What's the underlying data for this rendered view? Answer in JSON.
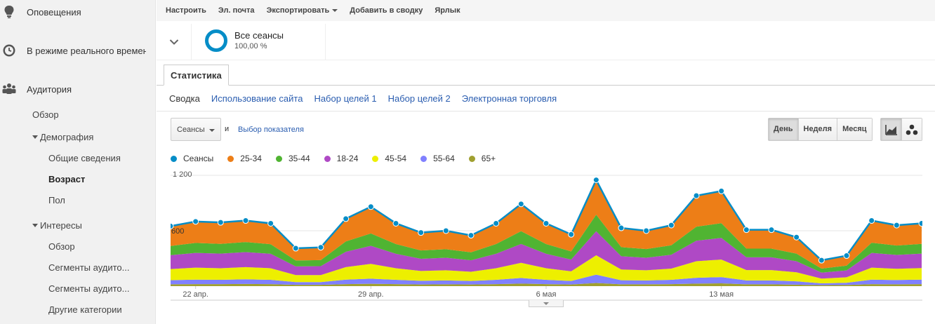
{
  "sidebar": {
    "notifications": {
      "label": "Оповещения",
      "icon": "bulb-icon"
    },
    "realtime": {
      "label": "В режиме реального времени",
      "icon": "clock-icon"
    },
    "audience": {
      "label": "Аудитория",
      "icon": "people-icon"
    },
    "audience_items": {
      "overview": "Обзор",
      "demographics": "Демография",
      "general": "Общие сведения",
      "age": "Возраст",
      "gender": "Пол",
      "interests": "Интересы",
      "interests_overview": "Обзор",
      "segments1": "Сегменты аудито...",
      "segments2": "Сегменты аудито...",
      "other": "Другие категории"
    }
  },
  "toolbar": {
    "customize": "Настроить",
    "email": "Эл. почта",
    "export": "Экспортировать",
    "add_dashboard": "Добавить в сводку",
    "shortcut": "Ярлык"
  },
  "segment": {
    "name": "Все сеансы",
    "percent": "100,00 %",
    "color": "#058dc7"
  },
  "tabs": {
    "stats": "Статистика"
  },
  "subtabs": [
    "Сводка",
    "Использование сайта",
    "Набор целей 1",
    "Набор целей 2",
    "Электронная торговля"
  ],
  "controls": {
    "metric": "Сеансы",
    "and": "и",
    "choose_metric": "Выбор показателя",
    "periods": [
      "День",
      "Неделя",
      "Месяц"
    ],
    "active_period": "День"
  },
  "chart_data": {
    "type": "area",
    "stacked": true,
    "y_ticks": [
      "1 200",
      "600"
    ],
    "x_tick_labels": [
      "22 апр.",
      "29 апр.",
      "6 мая",
      "13 мая"
    ],
    "ylim": [
      0,
      1200
    ],
    "grid": true,
    "legend_position": "top",
    "total": {
      "name": "Сеансы",
      "color": "#058dc7",
      "values": [
        650,
        700,
        690,
        710,
        680,
        410,
        420,
        730,
        860,
        680,
        580,
        600,
        550,
        680,
        890,
        680,
        560,
        1150,
        630,
        600,
        660,
        980,
        1030,
        610,
        610,
        530,
        280,
        330,
        710,
        660,
        680
      ]
    },
    "series": [
      {
        "name": "25-34",
        "color": "#ed7e17"
      },
      {
        "name": "35-44",
        "color": "#50b432"
      },
      {
        "name": "18-24",
        "color": "#af49c5"
      },
      {
        "name": "45-54",
        "color": "#edef00"
      },
      {
        "name": "55-64",
        "color": "#8080ff"
      },
      {
        "name": "65+",
        "color": "#a0a030"
      }
    ],
    "stack_bands": [
      {
        "name": "65+",
        "values": [
          20,
          22,
          22,
          24,
          22,
          14,
          14,
          22,
          26,
          22,
          18,
          20,
          18,
          22,
          28,
          22,
          18,
          34,
          20,
          20,
          22,
          28,
          30,
          20,
          20,
          16,
          10,
          12,
          22,
          20,
          22
        ]
      },
      {
        "name": "55-64",
        "values": [
          45,
          48,
          46,
          50,
          46,
          30,
          30,
          48,
          55,
          46,
          40,
          42,
          38,
          46,
          60,
          46,
          38,
          90,
          44,
          42,
          46,
          62,
          68,
          42,
          42,
          36,
          20,
          24,
          48,
          46,
          48
        ]
      },
      {
        "name": "45-54",
        "values": [
          120,
          130,
          126,
          132,
          126,
          76,
          76,
          136,
          160,
          126,
          106,
          110,
          100,
          126,
          165,
          126,
          104,
          210,
          116,
          110,
          122,
          180,
          190,
          112,
          112,
          98,
          52,
          60,
          130,
          122,
          126
        ]
      },
      {
        "name": "18-24",
        "values": [
          150,
          160,
          158,
          162,
          156,
          94,
          96,
          166,
          196,
          156,
          132,
          136,
          124,
          156,
          204,
          156,
          128,
          260,
          144,
          136,
          150,
          222,
          234,
          138,
          138,
          120,
          64,
          74,
          160,
          150,
          156
        ]
      },
      {
        "name": "35-44",
        "values": [
          100,
          108,
          106,
          110,
          104,
          64,
          66,
          112,
          134,
          106,
          90,
          92,
          86,
          106,
          138,
          106,
          88,
          180,
          98,
          94,
          102,
          152,
          160,
          94,
          94,
          82,
          44,
          52,
          110,
          102,
          106
        ]
      },
      {
        "name": "25-34",
        "values": [
          215,
          232,
          232,
          232,
          226,
          132,
          138,
          246,
          289,
          224,
          194,
          200,
          184,
          224,
          295,
          224,
          184,
          376,
          208,
          198,
          218,
          316,
          348,
          204,
          204,
          178,
          90,
          108,
          240,
          220,
          222
        ]
      }
    ]
  }
}
